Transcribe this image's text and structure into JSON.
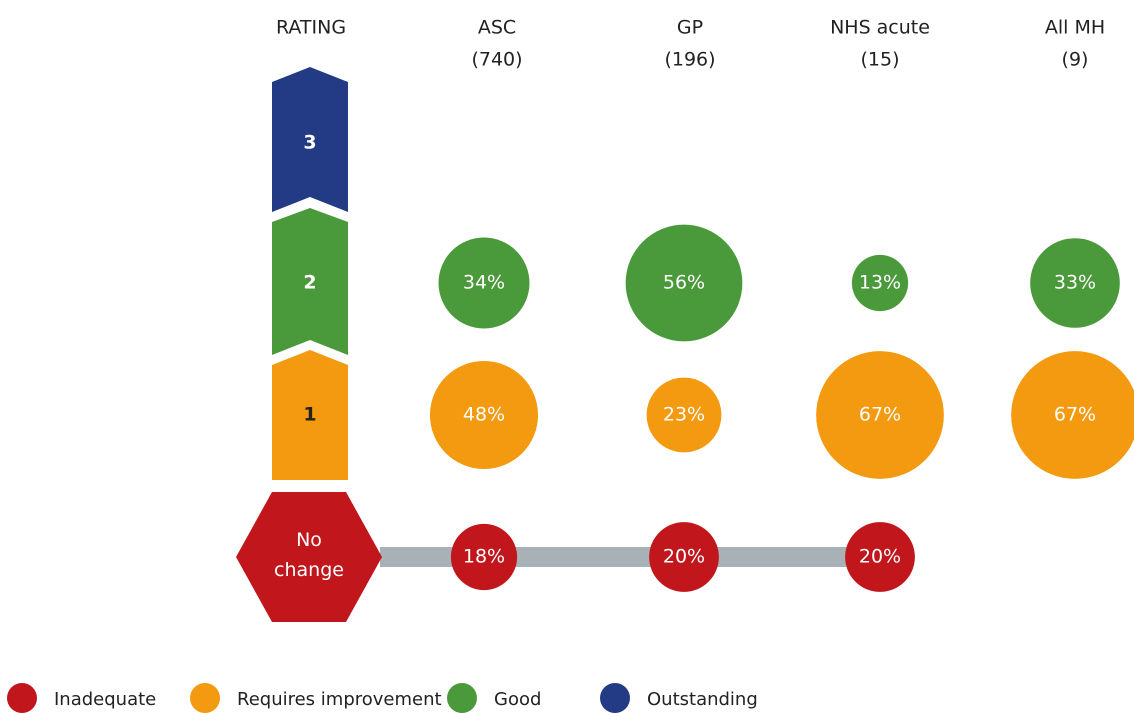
{
  "chart_data": {
    "type": "bubble",
    "row_axis_title": "RATING",
    "categories": [
      "ASC",
      "GP",
      "NHS acute",
      "All MH"
    ],
    "category_sublabels": [
      "(740)",
      "(196)",
      "(15)",
      "(9)"
    ],
    "series": [
      {
        "name": "Inadequate",
        "rating": "No change",
        "color": "#c1161c",
        "values": [
          18,
          20,
          20,
          null
        ],
        "value_labels": [
          "18%",
          "20%",
          "20%",
          null
        ]
      },
      {
        "name": "Requires improvement",
        "rating": "1",
        "color": "#f39a10",
        "values": [
          48,
          23,
          67,
          67
        ],
        "value_labels": [
          "48%",
          "23%",
          "67%",
          "67%"
        ]
      },
      {
        "name": "Good",
        "rating": "2",
        "color": "#4a9a3b",
        "values": [
          34,
          56,
          13,
          33
        ],
        "value_labels": [
          "34%",
          "56%",
          "13%",
          "33%"
        ]
      },
      {
        "name": "Outstanding",
        "rating": "3",
        "color": "#233a85",
        "values": [
          null,
          null,
          null,
          null
        ],
        "value_labels": [
          null,
          null,
          null,
          null
        ]
      }
    ]
  }
}
